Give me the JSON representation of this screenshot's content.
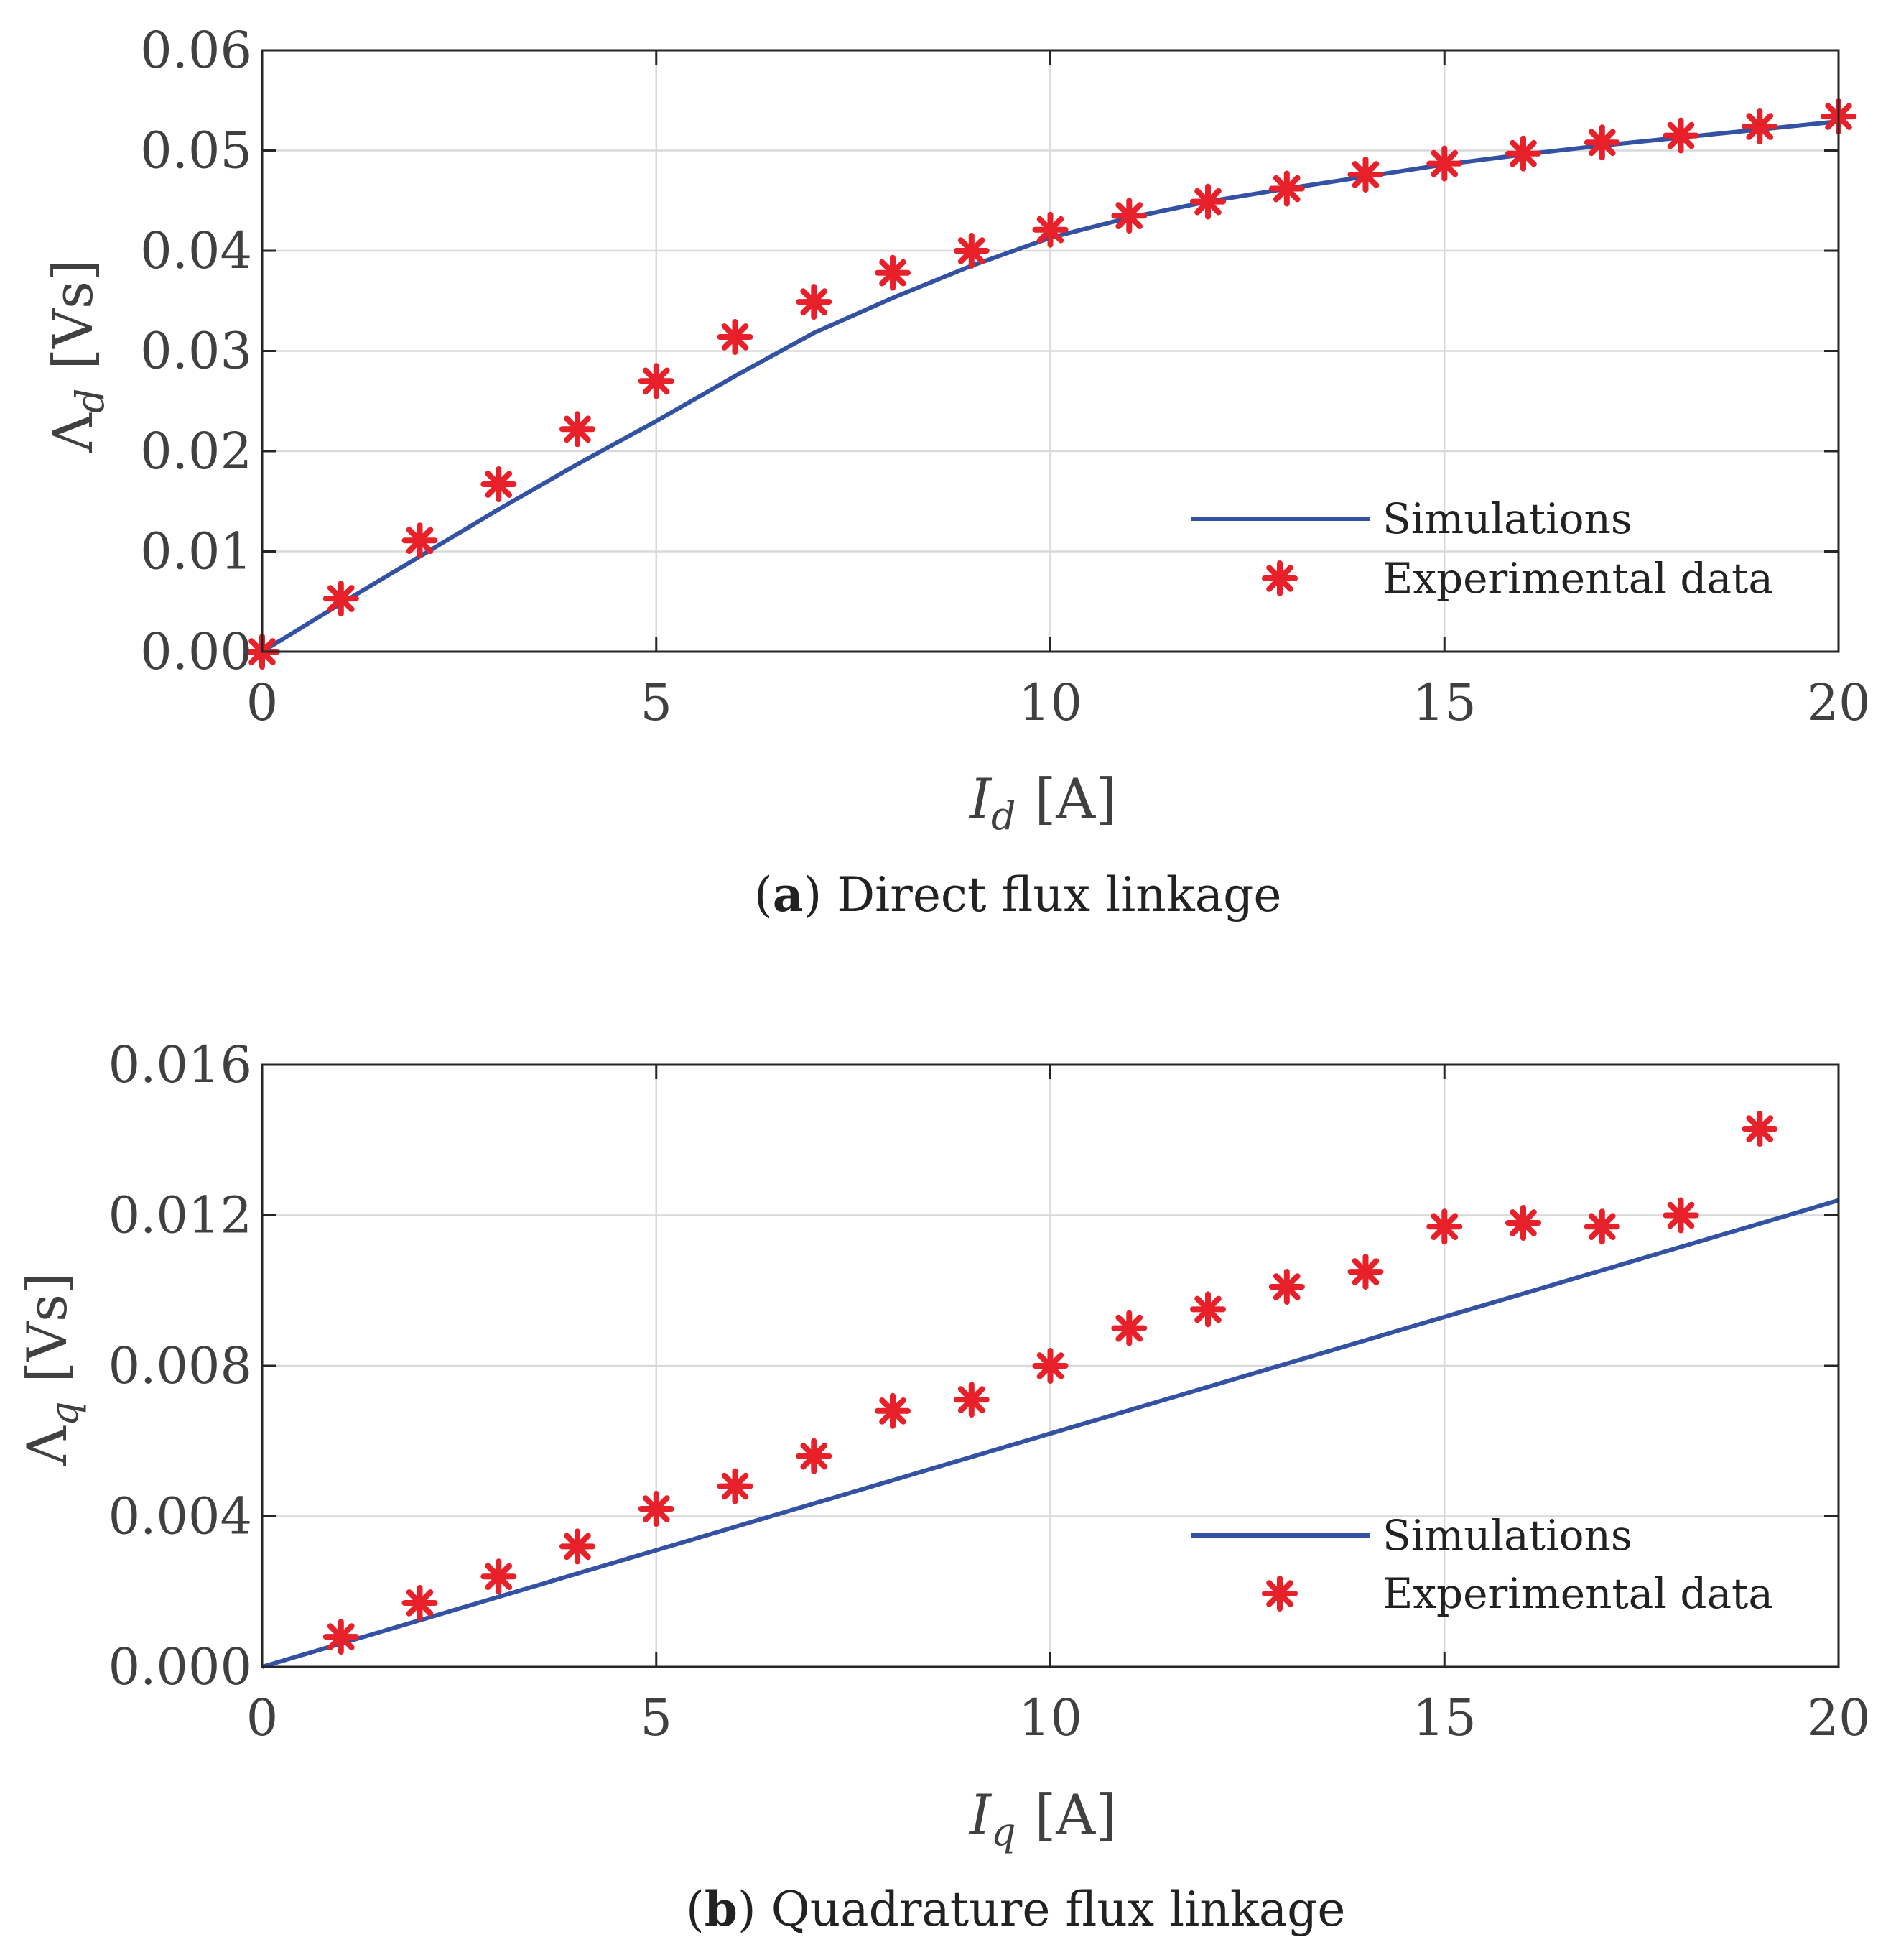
{
  "chart_data": [
    {
      "type": "line",
      "xlabel_main": "I",
      "xlabel_sub": "d",
      "xlabel_unit": "[A]",
      "ylabel_main": "Λ",
      "ylabel_sub": "d",
      "ylabel_unit": "[Vs]",
      "xlim": [
        0,
        20
      ],
      "ylim": [
        0,
        0.06
      ],
      "xticks": [
        "0",
        "5",
        "10",
        "15",
        "20"
      ],
      "xtick_values": [
        0,
        5,
        10,
        15,
        20
      ],
      "yticks": [
        "0.00",
        "0.01",
        "0.02",
        "0.03",
        "0.04",
        "0.05",
        "0.06"
      ],
      "ytick_values": [
        0,
        0.01,
        0.02,
        0.03,
        0.04,
        0.05,
        0.06
      ],
      "grid": true,
      "legend_position": "bottom-right",
      "series": [
        {
          "name": "Simulations",
          "style": "line",
          "color": "#3452a4",
          "x": [
            0,
            1,
            2,
            3,
            4,
            5,
            6,
            7,
            8,
            9,
            10,
            11,
            12,
            13,
            14,
            15,
            16,
            17,
            18,
            19,
            20
          ],
          "y": [
            0,
            0.0048,
            0.0095,
            0.0142,
            0.0187,
            0.023,
            0.0275,
            0.0318,
            0.0353,
            0.0385,
            0.0413,
            0.0433,
            0.0449,
            0.0462,
            0.0474,
            0.0486,
            0.0496,
            0.0505,
            0.0513,
            0.0521,
            0.0529
          ]
        },
        {
          "name": "Experimental data",
          "style": "asterisk",
          "color": "#e8202a",
          "x": [
            0,
            1,
            2,
            3,
            4,
            5,
            6,
            7,
            8,
            9,
            10,
            11,
            12,
            13,
            14,
            15,
            16,
            17,
            18,
            19,
            20
          ],
          "y": [
            0,
            0.0053,
            0.0111,
            0.0167,
            0.0222,
            0.027,
            0.0314,
            0.0349,
            0.0378,
            0.04,
            0.0421,
            0.0435,
            0.0449,
            0.0462,
            0.0476,
            0.0487,
            0.0497,
            0.0508,
            0.0515,
            0.0524,
            0.0534
          ]
        }
      ],
      "caption_label": "a",
      "caption_text": "Direct flux linkage"
    },
    {
      "type": "line",
      "xlabel_main": "I",
      "xlabel_sub": "q",
      "xlabel_unit": "[A]",
      "ylabel_main": "Λ",
      "ylabel_sub": "q",
      "ylabel_unit": "[Vs]",
      "xlim": [
        0,
        20
      ],
      "ylim": [
        0,
        0.016
      ],
      "xticks": [
        "0",
        "5",
        "10",
        "15",
        "20"
      ],
      "xtick_values": [
        0,
        5,
        10,
        15,
        20
      ],
      "yticks": [
        "0.000",
        "0.004",
        "0.008",
        "0.012",
        "0.016"
      ],
      "ytick_values": [
        0,
        0.004,
        0.008,
        0.012,
        0.016
      ],
      "grid": true,
      "legend_position": "bottom-right",
      "series": [
        {
          "name": "Simulations",
          "style": "line",
          "color": "#3452a4",
          "x": [
            0,
            20
          ],
          "y": [
            0,
            0.0124
          ]
        },
        {
          "name": "Experimental data",
          "style": "asterisk",
          "color": "#e8202a",
          "x": [
            1,
            2,
            3,
            4,
            5,
            6,
            7,
            8,
            9,
            10,
            11,
            12,
            13,
            14,
            15,
            16,
            17,
            18,
            19
          ],
          "y": [
            0.0008,
            0.0017,
            0.0024,
            0.0032,
            0.0042,
            0.0048,
            0.0056,
            0.0068,
            0.0071,
            0.008,
            0.009,
            0.0095,
            0.0101,
            0.0105,
            0.0117,
            0.0118,
            0.0117,
            0.012,
            0.0143
          ]
        }
      ],
      "caption_label": "b",
      "caption_text": "Quadrature flux linkage"
    }
  ]
}
